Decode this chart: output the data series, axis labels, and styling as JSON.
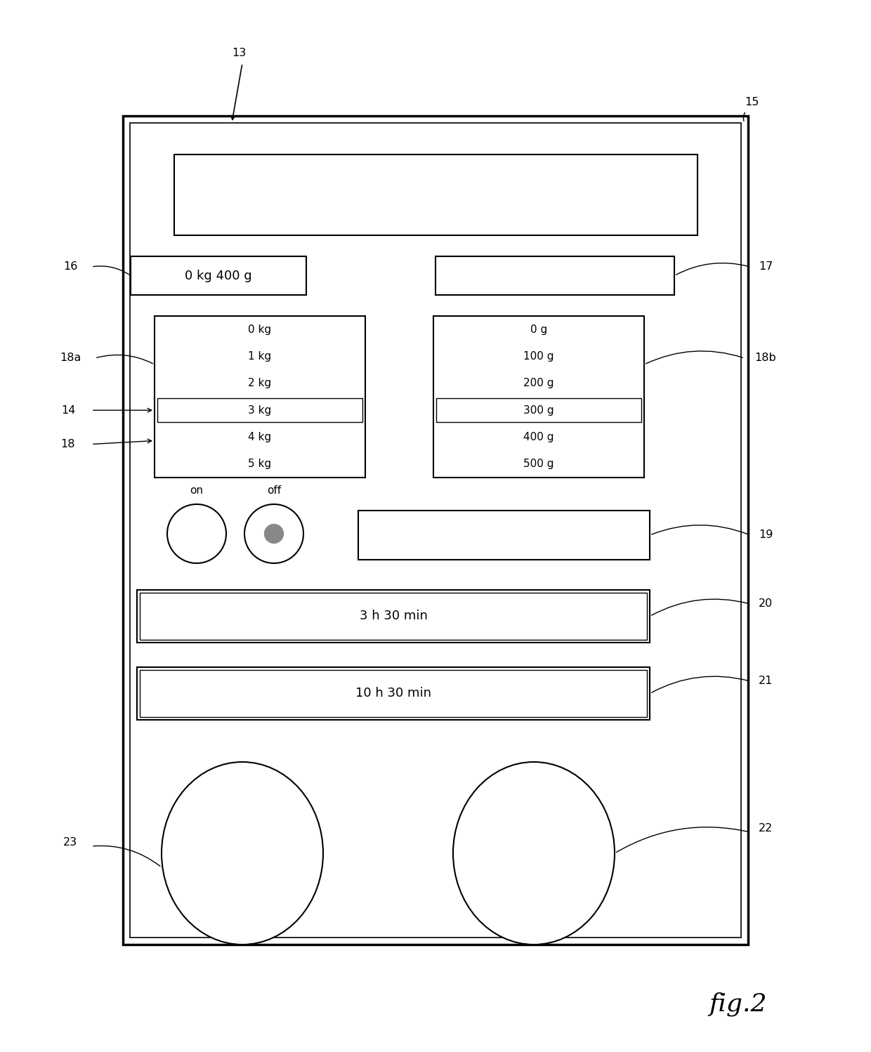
{
  "bg_color": "#ffffff",
  "line_color": "#000000",
  "fig_width": 12.4,
  "fig_height": 14.98,
  "title": "fig.2",
  "kg_list": [
    "0 kg",
    "1 kg",
    "2 kg",
    "3 kg",
    "4 kg",
    "5 kg"
  ],
  "g_list": [
    "0 g",
    "100 g",
    "200 g",
    "300 g",
    "400 g",
    "500 g"
  ],
  "selected_kg": "3 kg",
  "selected_g": "300 g",
  "display_weight": "0 kg 400 g",
  "time1": "3 h 30 min",
  "time2": "10 h 30 min"
}
